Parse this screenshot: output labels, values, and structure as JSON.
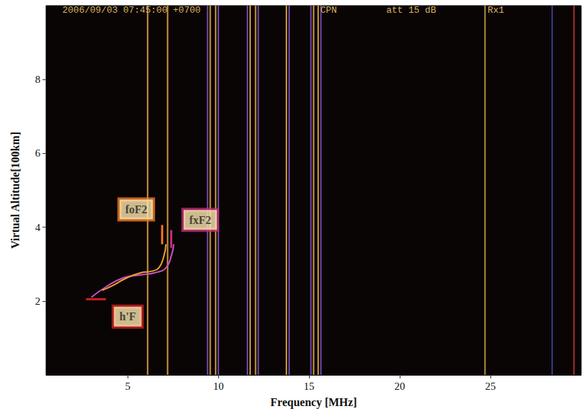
{
  "chart_data": {
    "type": "line",
    "title": [
      "2006/09/03 07:45:00 +0700",
      "CPN",
      "att 15 dB",
      "Rx1"
    ],
    "x_label": "Frequency [MHz]",
    "y_label": "Virtual Altitude[100km]",
    "xlim": [
      0.5,
      30
    ],
    "xticks": [
      5,
      10,
      15,
      20,
      25
    ],
    "ylim": [
      0,
      10
    ],
    "yticks": [
      2,
      4,
      6,
      8
    ],
    "grid": false,
    "series": [
      {
        "type": "vline",
        "color": "#e8a848",
        "x": [
          6.1,
          7.2,
          9.55,
          9.85,
          11.75,
          12.05,
          13.75,
          15.25,
          15.5
        ]
      },
      {
        "type": "vline",
        "color": "#7a50c0",
        "x": [
          9.4,
          10.0,
          11.6,
          12.2,
          13.9,
          15.1,
          15.65
        ]
      },
      {
        "type": "vline",
        "color": "#c8a040",
        "x": [
          24.7
        ]
      },
      {
        "type": "vline",
        "color": "#40409a",
        "x": [
          28.4
        ]
      },
      {
        "type": "vline",
        "color": "#c03030",
        "x": [
          29.6
        ]
      },
      {
        "type": "line",
        "color": "#d050c0",
        "x": [
          3.0,
          3.79,
          4.77,
          5.74,
          6.52,
          7.11,
          7.42,
          7.54
        ],
        "values": [
          2.1,
          2.38,
          2.63,
          2.71,
          2.77,
          2.9,
          3.25,
          3.54
        ]
      },
      {
        "type": "line",
        "color": "#f0a030",
        "x": [
          3.59,
          4.18,
          4.96,
          5.74,
          6.33,
          6.72,
          6.99,
          7.11
        ],
        "values": [
          2.29,
          2.42,
          2.63,
          2.77,
          2.81,
          2.9,
          3.21,
          3.54
        ]
      }
    ],
    "annotations": [
      {
        "text": "foF2",
        "x": 5.47,
        "y": 4.48,
        "color": "#f07820",
        "marker_x": [
          6.9,
          6.9
        ],
        "marker_y": [
          4.06,
          3.54
        ]
      },
      {
        "text": "fxF2",
        "x": 9.0,
        "y": 4.2,
        "color": "#c0307a",
        "marker_x": [
          7.4,
          7.4
        ],
        "marker_y": [
          3.92,
          3.44
        ]
      },
      {
        "text": "h'F",
        "x": 5.0,
        "y": 1.58,
        "color": "#d02020",
        "marker_x": [
          2.7,
          3.8
        ],
        "marker_y": [
          2.05,
          2.05
        ]
      }
    ]
  }
}
